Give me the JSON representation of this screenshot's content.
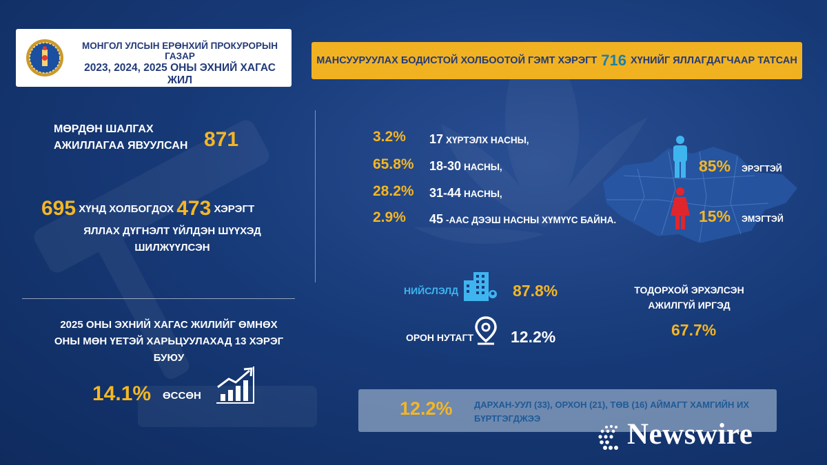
{
  "header": {
    "org_name": "МОНГОЛ УЛСЫН ЕРӨНХИЙ ПРОКУРОРЫН ГАЗАР",
    "period": "2023, 2024, 2025 ОНЫ ЭХНИЙ ХАГАС ЖИЛ"
  },
  "banner": {
    "prefix": "МАНСУУРУУЛАХ БОДИСТОЙ ХОЛБООТОЙ ГЭМТ ХЭРЭГТ",
    "value": "716",
    "suffix": "ХҮНИЙГ ЯЛЛАГДАГЧААР ТАТСАН"
  },
  "investigation": {
    "label_line1": "МӨРДӨН ШАЛГАХ",
    "label_line2": "АЖИЛЛАГАА ЯВУУЛСАН",
    "value": "871"
  },
  "indictment": {
    "persons": "695",
    "persons_label": "ХҮНД ХОЛБОГДОХ",
    "cases": "473",
    "cases_label": "ХЭРЭГТ",
    "line2": "ЯЛЛАХ ДҮГНЭЛТ ҮЙЛДЭН ШҮҮХЭД",
    "line3": "ШИЛЖҮҮЛСЭН"
  },
  "comparison": {
    "line1": "2025 ОНЫ ЭХНИЙ ХАГАС ЖИЛИЙГ ӨМНӨХ",
    "line2": "ОНЫ МӨН ҮЕТЭЙ ХАРЬЦУУЛАХАД 13 ХЭРЭГ",
    "line3": "БУЮУ",
    "increase_value": "14.1%",
    "increase_label": "ӨССӨН"
  },
  "age_groups": [
    {
      "pct": "3.2%",
      "num": "17",
      "text": "ХҮРТЭЛХ НАСНЫ,"
    },
    {
      "pct": "65.8%",
      "num": "18-30",
      "text": "НАСНЫ,"
    },
    {
      "pct": "28.2%",
      "num": "31-44",
      "text": "НАСНЫ,"
    },
    {
      "pct": "2.9%",
      "num": "45",
      "text": "-ААС ДЭЭШ НАСНЫ ХҮМҮҮС БАЙНА."
    }
  ],
  "gender": {
    "male_pct": "85%",
    "male_label": "ЭРЭГТЭЙ",
    "female_pct": "15%",
    "female_label": "ЭМЭГТЭЙ"
  },
  "location": {
    "capital_label": "НИЙСЛЭЛД",
    "capital_pct": "87.8%",
    "rural_label": "ОРОН НУТАГТ",
    "rural_pct": "12.2%"
  },
  "unemployed": {
    "line1": "ТОДОРХОЙ ЭРХЭЛСЭН",
    "line2": "АЖИЛГҮЙ ИРГЭД",
    "pct": "67.7%"
  },
  "regions": {
    "pct": "12.2%",
    "text": "ДАРХАН-УУЛ (33), ОРХОН (21), ТӨВ (16) АЙМАГТ ХАМГИЙН ИХ БҮРТГЭГДЖЭЭ"
  },
  "watermark": "Newswire",
  "colors": {
    "accent": "#f5b623",
    "background": "#173a78",
    "male": "#3fb5f0",
    "female": "#e0262c"
  }
}
